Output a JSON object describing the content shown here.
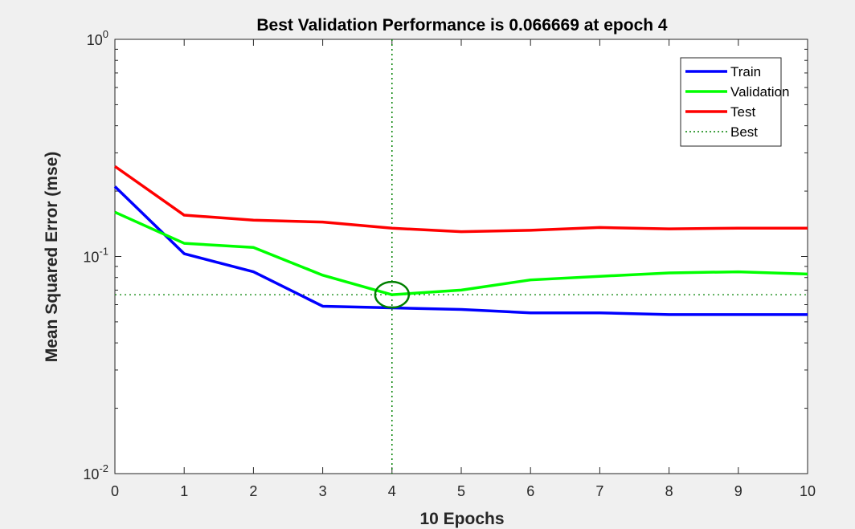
{
  "chart_data": {
    "type": "line",
    "title": "Best Validation Performance is 0.066669 at epoch 4",
    "xlabel": "10 Epochs",
    "ylabel": "Mean Squared Error  (mse)",
    "y_scale": "log",
    "xlim": [
      0,
      10
    ],
    "ylim": [
      0.01,
      1
    ],
    "x_ticks": [
      "0",
      "1",
      "2",
      "3",
      "4",
      "5",
      "6",
      "7",
      "8",
      "9",
      "10"
    ],
    "y_ticks": [
      {
        "value": 1,
        "base": "10",
        "exp": "0"
      },
      {
        "value": 0.1,
        "base": "10",
        "exp": "-1"
      },
      {
        "value": 0.01,
        "base": "10",
        "exp": "-2"
      }
    ],
    "x": [
      0,
      1,
      2,
      3,
      4,
      5,
      6,
      7,
      8,
      9,
      10
    ],
    "series": [
      {
        "name": "Train",
        "color": "#0000ff",
        "values": [
          0.21,
          0.103,
          0.085,
          0.059,
          0.058,
          0.057,
          0.055,
          0.055,
          0.054,
          0.054,
          0.054
        ]
      },
      {
        "name": "Validation",
        "color": "#00ff00",
        "values": [
          0.16,
          0.115,
          0.11,
          0.082,
          0.066669,
          0.07,
          0.078,
          0.081,
          0.084,
          0.085,
          0.083
        ]
      },
      {
        "name": "Test",
        "color": "#ff0000",
        "values": [
          0.26,
          0.155,
          0.147,
          0.144,
          0.135,
          0.13,
          0.132,
          0.136,
          0.134,
          0.135,
          0.135
        ]
      }
    ],
    "best": {
      "name": "Best",
      "epoch": 4,
      "value": 0.066669,
      "color": "#008000"
    },
    "legend_position": "top-right",
    "grid": false
  }
}
